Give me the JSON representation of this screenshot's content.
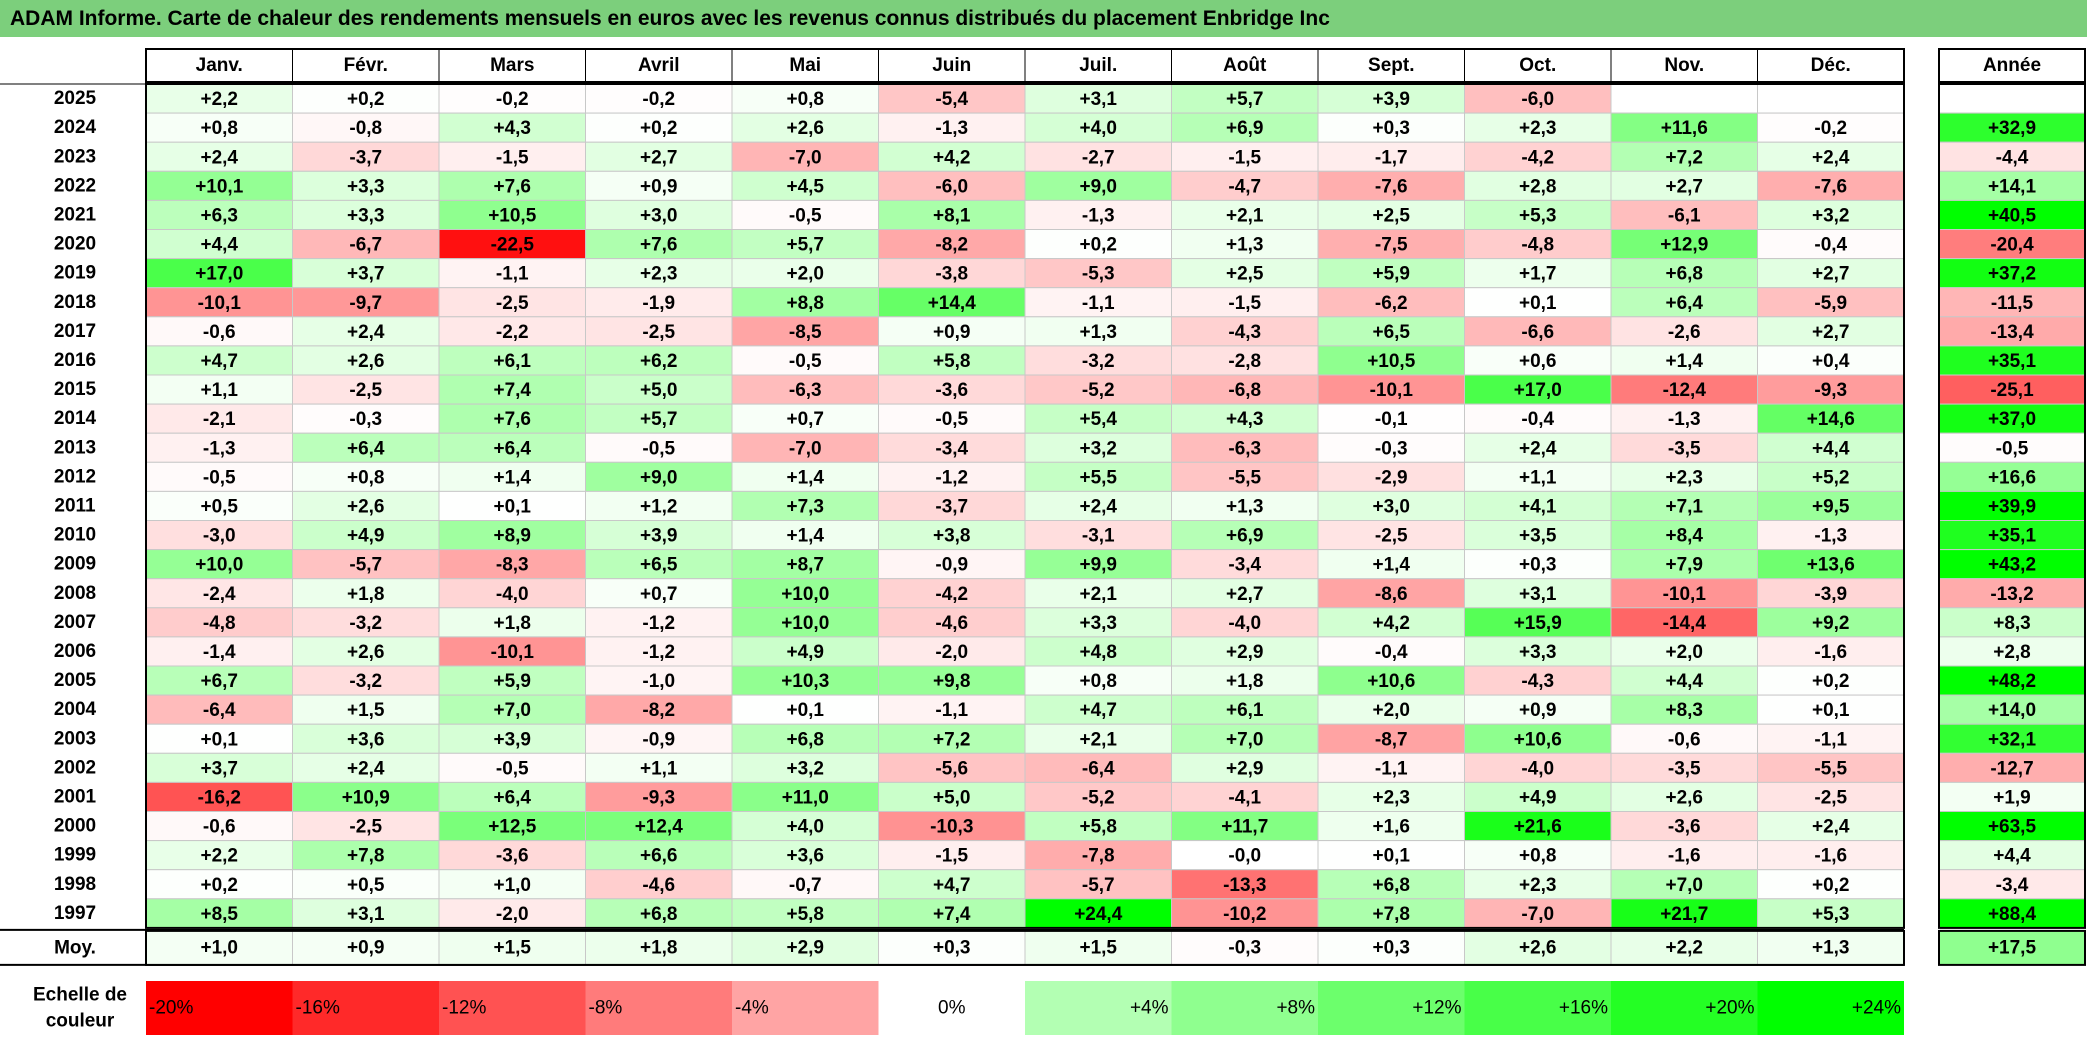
{
  "title": "ADAM Informe. Carte de chaleur des rendements mensuels en euros avec les revenus connus distribués du placement Enbridge Inc",
  "colors": {
    "title_bg": "#7ccf7c",
    "negative_max": "#ff0000",
    "neutral": "#ffffff",
    "positive_max": "#00ff00",
    "grid": "#c8c8c8",
    "border": "#000000"
  },
  "chart_data": {
    "type": "heatmap",
    "title": "ADAM Informe. Carte de chaleur des rendements mensuels en euros avec les revenus connus distribués du placement Enbridge Inc",
    "months": [
      "Janv.",
      "Févr.",
      "Mars",
      "Avril",
      "Mai",
      "Juin",
      "Juil.",
      "Août",
      "Sept.",
      "Oct.",
      "Nov.",
      "Déc."
    ],
    "year_label": "Année",
    "rows": [
      {
        "year": "2025",
        "values": [
          "+2,2",
          "+0,2",
          "-0,2",
          "-0,2",
          "+0,8",
          "-5,4",
          "+3,1",
          "+5,7",
          "+3,9",
          "-6,0",
          "",
          ""
        ],
        "annual": ""
      },
      {
        "year": "2024",
        "values": [
          "+0,8",
          "-0,8",
          "+4,3",
          "+0,2",
          "+2,6",
          "-1,3",
          "+4,0",
          "+6,9",
          "+0,3",
          "+2,3",
          "+11,6",
          "-0,2"
        ],
        "annual": "+32,9"
      },
      {
        "year": "2023",
        "values": [
          "+2,4",
          "-3,7",
          "-1,5",
          "+2,7",
          "-7,0",
          "+4,2",
          "-2,7",
          "-1,5",
          "-1,7",
          "-4,2",
          "+7,2",
          "+2,4"
        ],
        "annual": "-4,4"
      },
      {
        "year": "2022",
        "values": [
          "+10,1",
          "+3,3",
          "+7,6",
          "+0,9",
          "+4,5",
          "-6,0",
          "+9,0",
          "-4,7",
          "-7,6",
          "+2,8",
          "+2,7",
          "-7,6"
        ],
        "annual": "+14,1"
      },
      {
        "year": "2021",
        "values": [
          "+6,3",
          "+3,3",
          "+10,5",
          "+3,0",
          "-0,5",
          "+8,1",
          "-1,3",
          "+2,1",
          "+2,5",
          "+5,3",
          "-6,1",
          "+3,2"
        ],
        "annual": "+40,5"
      },
      {
        "year": "2020",
        "values": [
          "+4,4",
          "-6,7",
          "-22,5",
          "+7,6",
          "+5,7",
          "-8,2",
          "+0,2",
          "+1,3",
          "-7,5",
          "-4,8",
          "+12,9",
          "-0,4"
        ],
        "annual": "-20,4"
      },
      {
        "year": "2019",
        "values": [
          "+17,0",
          "+3,7",
          "-1,1",
          "+2,3",
          "+2,0",
          "-3,8",
          "-5,3",
          "+2,5",
          "+5,9",
          "+1,7",
          "+6,8",
          "+2,7"
        ],
        "annual": "+37,2"
      },
      {
        "year": "2018",
        "values": [
          "-10,1",
          "-9,7",
          "-2,5",
          "-1,9",
          "+8,8",
          "+14,4",
          "-1,1",
          "-1,5",
          "-6,2",
          "+0,1",
          "+6,4",
          "-5,9"
        ],
        "annual": "-11,5"
      },
      {
        "year": "2017",
        "values": [
          "-0,6",
          "+2,4",
          "-2,2",
          "-2,5",
          "-8,5",
          "+0,9",
          "+1,3",
          "-4,3",
          "+6,5",
          "-6,6",
          "-2,6",
          "+2,7"
        ],
        "annual": "-13,4"
      },
      {
        "year": "2016",
        "values": [
          "+4,7",
          "+2,6",
          "+6,1",
          "+6,2",
          "-0,5",
          "+5,8",
          "-3,2",
          "-2,8",
          "+10,5",
          "+0,6",
          "+1,4",
          "+0,4"
        ],
        "annual": "+35,1"
      },
      {
        "year": "2015",
        "values": [
          "+1,1",
          "-2,5",
          "+7,4",
          "+5,0",
          "-6,3",
          "-3,6",
          "-5,2",
          "-6,8",
          "-10,1",
          "+17,0",
          "-12,4",
          "-9,3"
        ],
        "annual": "-25,1"
      },
      {
        "year": "2014",
        "values": [
          "-2,1",
          "-0,3",
          "+7,6",
          "+5,7",
          "+0,7",
          "-0,5",
          "+5,4",
          "+4,3",
          "-0,1",
          "-0,4",
          "-1,3",
          "+14,6"
        ],
        "annual": "+37,0"
      },
      {
        "year": "2013",
        "values": [
          "-1,3",
          "+6,4",
          "+6,4",
          "-0,5",
          "-7,0",
          "-3,4",
          "+3,2",
          "-6,3",
          "-0,3",
          "+2,4",
          "-3,5",
          "+4,4"
        ],
        "annual": "-0,5"
      },
      {
        "year": "2012",
        "values": [
          "-0,5",
          "+0,8",
          "+1,4",
          "+9,0",
          "+1,4",
          "-1,2",
          "+5,5",
          "-5,5",
          "-2,9",
          "+1,1",
          "+2,3",
          "+5,2"
        ],
        "annual": "+16,6"
      },
      {
        "year": "2011",
        "values": [
          "+0,5",
          "+2,6",
          "+0,1",
          "+1,2",
          "+7,3",
          "-3,7",
          "+2,4",
          "+1,3",
          "+3,0",
          "+4,1",
          "+7,1",
          "+9,5"
        ],
        "annual": "+39,9"
      },
      {
        "year": "2010",
        "values": [
          "-3,0",
          "+4,9",
          "+8,9",
          "+3,9",
          "+1,4",
          "+3,8",
          "-3,1",
          "+6,9",
          "-2,5",
          "+3,5",
          "+8,4",
          "-1,3"
        ],
        "annual": "+35,1"
      },
      {
        "year": "2009",
        "values": [
          "+10,0",
          "-5,7",
          "-8,3",
          "+6,5",
          "+8,7",
          "-0,9",
          "+9,9",
          "-3,4",
          "+1,4",
          "+0,3",
          "+7,9",
          "+13,6"
        ],
        "annual": "+43,2"
      },
      {
        "year": "2008",
        "values": [
          "-2,4",
          "+1,8",
          "-4,0",
          "+0,7",
          "+10,0",
          "-4,2",
          "+2,1",
          "+2,7",
          "-8,6",
          "+3,1",
          "-10,1",
          "-3,9"
        ],
        "annual": "-13,2"
      },
      {
        "year": "2007",
        "values": [
          "-4,8",
          "-3,2",
          "+1,8",
          "-1,2",
          "+10,0",
          "-4,6",
          "+3,3",
          "-4,0",
          "+4,2",
          "+15,9",
          "-14,4",
          "+9,2"
        ],
        "annual": "+8,3"
      },
      {
        "year": "2006",
        "values": [
          "-1,4",
          "+2,6",
          "-10,1",
          "-1,2",
          "+4,9",
          "-2,0",
          "+4,8",
          "+2,9",
          "-0,4",
          "+3,3",
          "+2,0",
          "-1,6"
        ],
        "annual": "+2,8"
      },
      {
        "year": "2005",
        "values": [
          "+6,7",
          "-3,2",
          "+5,9",
          "-1,0",
          "+10,3",
          "+9,8",
          "+0,8",
          "+1,8",
          "+10,6",
          "-4,3",
          "+4,4",
          "+0,2"
        ],
        "annual": "+48,2"
      },
      {
        "year": "2004",
        "values": [
          "-6,4",
          "+1,5",
          "+7,0",
          "-8,2",
          "+0,1",
          "-1,1",
          "+4,7",
          "+6,1",
          "+2,0",
          "+0,9",
          "+8,3",
          "+0,1"
        ],
        "annual": "+14,0"
      },
      {
        "year": "2003",
        "values": [
          "+0,1",
          "+3,6",
          "+3,9",
          "-0,9",
          "+6,8",
          "+7,2",
          "+2,1",
          "+7,0",
          "-8,7",
          "+10,6",
          "-0,6",
          "-1,1"
        ],
        "annual": "+32,1"
      },
      {
        "year": "2002",
        "values": [
          "+3,7",
          "+2,4",
          "-0,5",
          "+1,1",
          "+3,2",
          "-5,6",
          "-6,4",
          "+2,9",
          "-1,1",
          "-4,0",
          "-3,5",
          "-5,5"
        ],
        "annual": "-12,7"
      },
      {
        "year": "2001",
        "values": [
          "-16,2",
          "+10,9",
          "+6,4",
          "-9,3",
          "+11,0",
          "+5,0",
          "-5,2",
          "-4,1",
          "+2,3",
          "+4,9",
          "+2,6",
          "-2,5"
        ],
        "annual": "+1,9"
      },
      {
        "year": "2000",
        "values": [
          "-0,6",
          "-2,5",
          "+12,5",
          "+12,4",
          "+4,0",
          "-10,3",
          "+5,8",
          "+11,7",
          "+1,6",
          "+21,6",
          "-3,6",
          "+2,4"
        ],
        "annual": "+63,5"
      },
      {
        "year": "1999",
        "values": [
          "+2,2",
          "+7,8",
          "-3,6",
          "+6,6",
          "+3,6",
          "-1,5",
          "-7,8",
          "-0,0",
          "+0,1",
          "+0,8",
          "-1,6",
          "-1,6"
        ],
        "annual": "+4,4"
      },
      {
        "year": "1998",
        "values": [
          "+0,2",
          "+0,5",
          "+1,0",
          "-4,6",
          "-0,7",
          "+4,7",
          "-5,7",
          "-13,3",
          "+6,8",
          "+2,3",
          "+7,0",
          "+0,2"
        ],
        "annual": "-3,4"
      },
      {
        "year": "1997",
        "values": [
          "+8,5",
          "+3,1",
          "-2,0",
          "+6,8",
          "+5,8",
          "+7,4",
          "+24,4",
          "-10,2",
          "+7,8",
          "-7,0",
          "+21,7",
          "+5,3"
        ],
        "annual": "+88,4"
      }
    ],
    "average": {
      "label": "Moy.",
      "values": [
        "+1,0",
        "+0,9",
        "+1,5",
        "+1,8",
        "+2,9",
        "+0,3",
        "+1,5",
        "-0,3",
        "+0,3",
        "+2,6",
        "+2,2",
        "+1,3"
      ],
      "annual": "+17,5"
    },
    "color_scale": {
      "label_line1": "Echelle de",
      "label_line2": "couleur",
      "steps": [
        "-20%",
        "-16%",
        "-12%",
        "-8%",
        "-4%",
        "0%",
        "+4%",
        "+8%",
        "+12%",
        "+16%",
        "+20%",
        "+24%"
      ],
      "step_values": [
        -20,
        -16,
        -12,
        -8,
        -4,
        0,
        4,
        8,
        12,
        16,
        20,
        24
      ]
    }
  }
}
